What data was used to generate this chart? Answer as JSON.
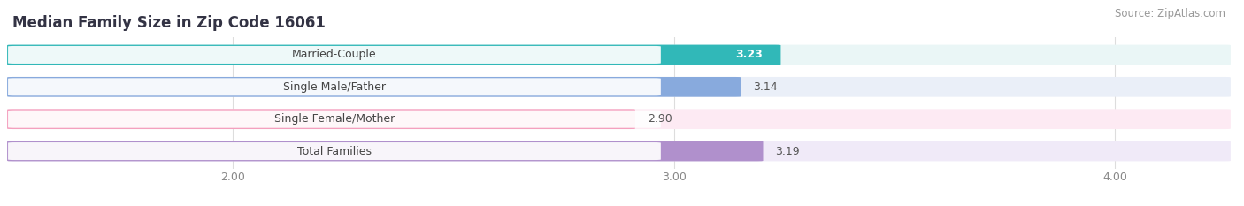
{
  "title": "Median Family Size in Zip Code 16061",
  "source": "Source: ZipAtlas.com",
  "categories": [
    "Married-Couple",
    "Single Male/Father",
    "Single Female/Mother",
    "Total Families"
  ],
  "values": [
    3.23,
    3.14,
    2.9,
    3.19
  ],
  "bar_colors": [
    "#31b8b8",
    "#88aadd",
    "#f4a0be",
    "#b090cc"
  ],
  "bar_background_colors": [
    "#eaf6f6",
    "#eaeff8",
    "#fdeaf3",
    "#f0eaf8"
  ],
  "xlim_min": 1.5,
  "xlim_max": 4.25,
  "xticks": [
    2.0,
    3.0,
    4.0
  ],
  "xtick_labels": [
    "2.00",
    "3.00",
    "4.00"
  ],
  "title_fontsize": 12,
  "source_fontsize": 8.5,
  "bar_label_fontsize": 9,
  "category_label_fontsize": 9,
  "tick_fontsize": 9,
  "background_color": "#ffffff",
  "bar_height": 0.6,
  "title_color": "#333344",
  "source_color": "#999999",
  "grid_color": "#dddddd",
  "label_text_color": "#444444"
}
